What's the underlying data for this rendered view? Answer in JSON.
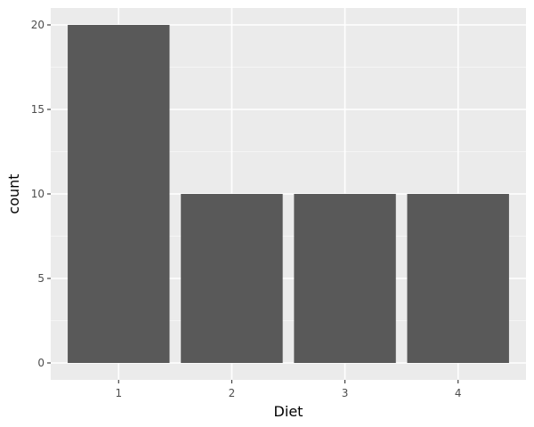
{
  "chart_data": {
    "type": "bar",
    "categories": [
      "1",
      "2",
      "3",
      "4"
    ],
    "values": [
      20,
      10,
      10,
      10
    ],
    "xlabel": "Diet",
    "ylabel": "count",
    "ylim": [
      -1,
      21
    ],
    "yticks": [
      0,
      5,
      10,
      15,
      20
    ],
    "grid": true,
    "colors": {
      "panel_background": "#EBEBEB",
      "bar_fill": "#595959",
      "major_grid": "#FFFFFF",
      "minor_grid": "#F5F5F5",
      "tick_mark": "#333333"
    }
  }
}
